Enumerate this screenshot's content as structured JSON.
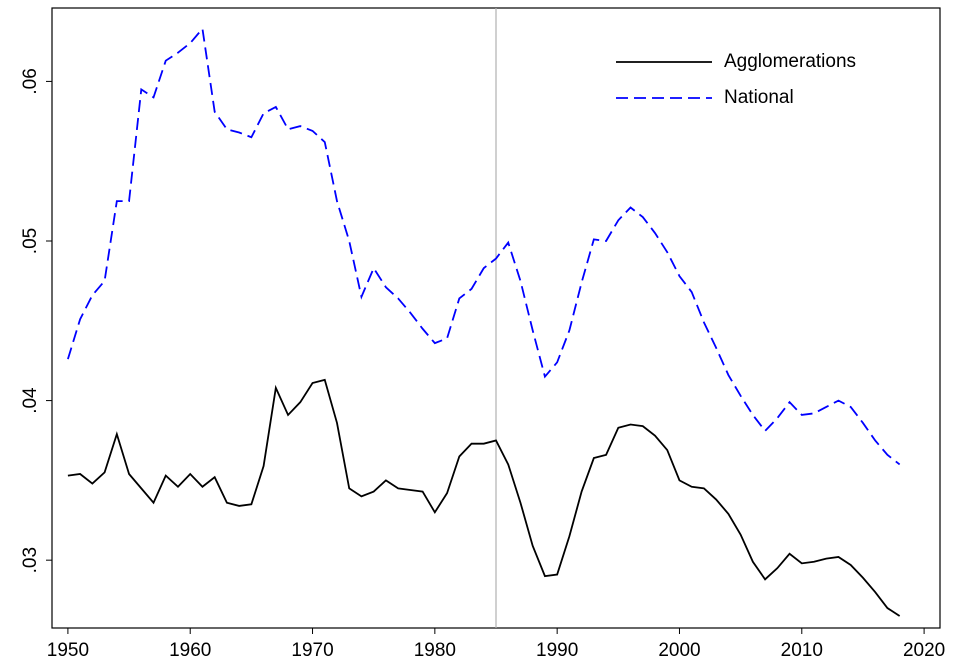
{
  "chart_data": {
    "type": "line",
    "x": [
      1950,
      1951,
      1952,
      1953,
      1954,
      1955,
      1956,
      1957,
      1958,
      1959,
      1960,
      1961,
      1962,
      1963,
      1964,
      1965,
      1966,
      1967,
      1968,
      1969,
      1970,
      1971,
      1972,
      1973,
      1974,
      1975,
      1976,
      1977,
      1978,
      1979,
      1980,
      1981,
      1982,
      1983,
      1984,
      1985,
      1986,
      1987,
      1988,
      1989,
      1990,
      1991,
      1992,
      1993,
      1994,
      1995,
      1996,
      1997,
      1998,
      1999,
      2000,
      2001,
      2002,
      2003,
      2004,
      2005,
      2006,
      2007,
      2008,
      2009,
      2010,
      2011,
      2012,
      2013,
      2014,
      2015,
      2016,
      2017,
      2018
    ],
    "series": [
      {
        "name": "Agglomerations",
        "color": "#000000",
        "style": "solid",
        "values": [
          0.0353,
          0.0354,
          0.0348,
          0.0355,
          0.0379,
          0.0354,
          0.0345,
          0.0336,
          0.0353,
          0.0346,
          0.0354,
          0.0346,
          0.0352,
          0.0336,
          0.0334,
          0.0335,
          0.0359,
          0.0408,
          0.0391,
          0.0399,
          0.0411,
          0.0413,
          0.0386,
          0.0345,
          0.034,
          0.0343,
          0.035,
          0.0345,
          0.0344,
          0.0343,
          0.033,
          0.0342,
          0.0365,
          0.0373,
          0.0373,
          0.0375,
          0.036,
          0.0336,
          0.0309,
          0.029,
          0.0291,
          0.0315,
          0.0343,
          0.0364,
          0.0366,
          0.0383,
          0.0385,
          0.0384,
          0.0378,
          0.0369,
          0.035,
          0.0346,
          0.0345,
          0.0338,
          0.0329,
          0.0316,
          0.0299,
          0.0288,
          0.0295,
          0.0304,
          0.0298,
          0.0299,
          0.0301,
          0.0302,
          0.0297,
          0.0289,
          0.028,
          0.027,
          0.0265
        ]
      },
      {
        "name": "National",
        "color": "#0000ff",
        "style": "dashed",
        "values": [
          0.0426,
          0.0451,
          0.0466,
          0.0475,
          0.0525,
          0.0525,
          0.0595,
          0.059,
          0.0613,
          0.0618,
          0.0624,
          0.0633,
          0.0581,
          0.057,
          0.0568,
          0.0565,
          0.058,
          0.0584,
          0.057,
          0.0572,
          0.0569,
          0.0562,
          0.0525,
          0.05,
          0.0465,
          0.0483,
          0.0471,
          0.0464,
          0.0455,
          0.0445,
          0.0436,
          0.0439,
          0.0464,
          0.047,
          0.0483,
          0.0489,
          0.0499,
          0.0475,
          0.0444,
          0.0415,
          0.0424,
          0.0444,
          0.0474,
          0.0501,
          0.05,
          0.0513,
          0.0521,
          0.0515,
          0.0505,
          0.0493,
          0.0478,
          0.0468,
          0.0449,
          0.0433,
          0.0416,
          0.0403,
          0.0391,
          0.0381,
          0.0389,
          0.0399,
          0.0391,
          0.0392,
          0.0396,
          0.04,
          0.0396,
          0.0386,
          0.0375,
          0.0366,
          0.036
        ]
      }
    ],
    "xlim": [
      1948.7,
      2021.3
    ],
    "xticks": [
      1950,
      1960,
      1970,
      1980,
      1990,
      2000,
      2010,
      2020
    ],
    "ylim": [
      0.02575,
      0.0646
    ],
    "yticks": [
      {
        "value": 0.03,
        "label": ".03"
      },
      {
        "value": 0.04,
        "label": ".04"
      },
      {
        "value": 0.05,
        "label": ".05"
      },
      {
        "value": 0.06,
        "label": ".06"
      }
    ],
    "reference_line_x": 1985,
    "reference_line_color": "#b0b0b0",
    "legend": "top-right",
    "grid": false
  }
}
